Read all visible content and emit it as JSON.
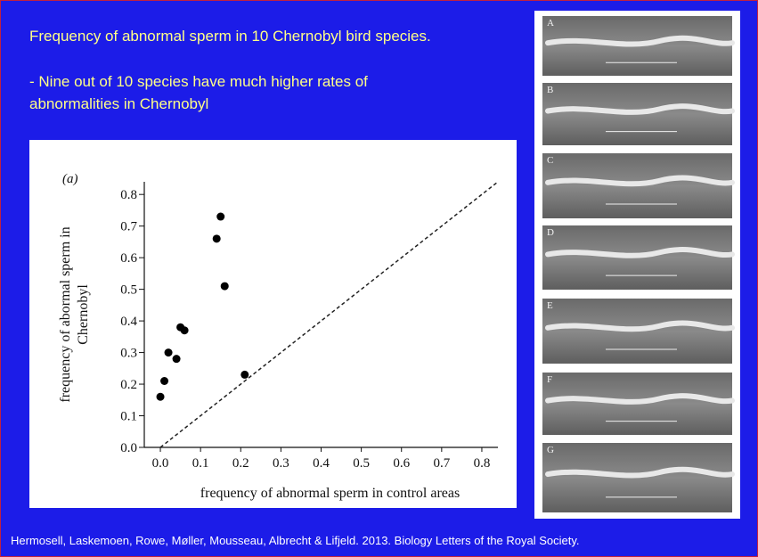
{
  "slide": {
    "title": "Frequency of abnormal sperm in 10 Chernobyl bird species.",
    "bullet_lines": [
      "- Nine out of 10 species have much higher rates of",
      "abnormalities in Chernobyl"
    ],
    "citation": "Hermosell, Laskemoen, Rowe,  Møller, Mousseau,  Albrecht & Lifjeld. 2013. Biology Letters of the Royal Society.",
    "image_labels": [
      "A",
      "B",
      "C",
      "D",
      "E",
      "F",
      "G"
    ]
  },
  "chart_data": {
    "type": "scatter",
    "panel_label": "(a)",
    "xlabel": "frequency of abnormal sperm in control areas",
    "ylabel": [
      "frequency of abormal sperm in",
      "Chernobyl"
    ],
    "x": [
      0,
      0.01,
      0.02,
      0.04,
      0.05,
      0.06,
      0.14,
      0.15,
      0.16,
      0.21
    ],
    "values": [
      0.16,
      0.21,
      0.3,
      0.28,
      0.38,
      0.37,
      0.66,
      0.73,
      0.51,
      0.23
    ],
    "color": "#000000",
    "xlim": [
      -0.04,
      0.84
    ],
    "ylim": [
      0,
      0.84
    ],
    "xticks": [
      {
        "value": 0,
        "label": "0.0"
      },
      0.1,
      0.2,
      0.3,
      0.4,
      0.5,
      0.6,
      0.7,
      0.8
    ],
    "yticks": [
      {
        "value": 0,
        "label": "0.0"
      },
      0.1,
      0.2,
      0.3,
      0.4,
      0.5,
      0.6,
      0.7,
      0.8
    ],
    "diagonal": true,
    "grid": false
  }
}
